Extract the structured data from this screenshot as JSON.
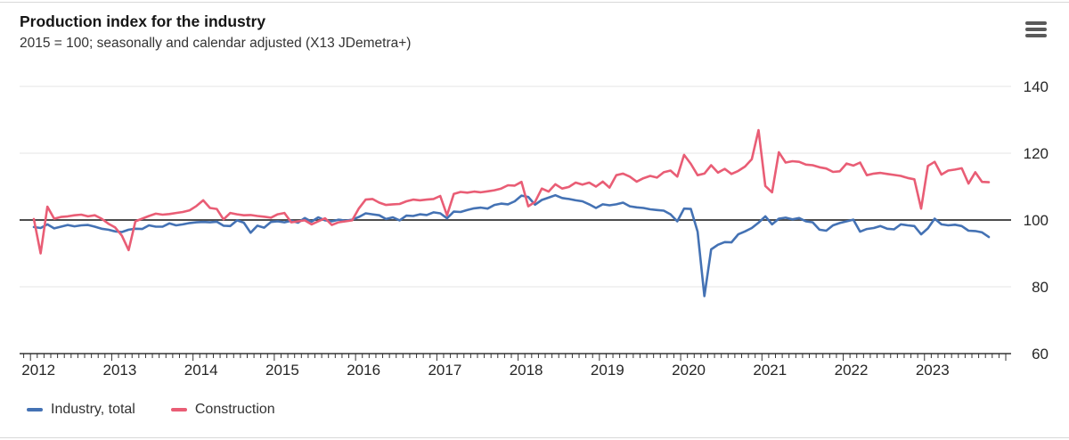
{
  "header": {
    "title": "Production index for the industry",
    "subtitle": "2015 = 100; seasonally and calendar adjusted (X13 JDemetra+)",
    "menu_icon": "hamburger-icon"
  },
  "chart_data": {
    "type": "line",
    "title": "Production index for the industry",
    "subtitle": "2015 = 100; seasonally and calendar adjusted (X13 JDemetra+)",
    "x_unit": "month",
    "x_range": [
      "2012-01",
      "2023-10"
    ],
    "x_tick_labels": [
      "2012",
      "2013",
      "2014",
      "2015",
      "2016",
      "2017",
      "2018",
      "2019",
      "2020",
      "2021",
      "2022",
      "2023"
    ],
    "y_ticks": [
      140,
      120,
      100,
      80,
      60
    ],
    "ylim": [
      60,
      140
    ],
    "baseline_value": 100,
    "grid": "horizontal-only",
    "legend_position": "bottom-left",
    "colors": {
      "grid": "#e6e6e6",
      "baseline": "#4d4d4d",
      "axis": "#333333",
      "text": "#262626"
    },
    "series": [
      {
        "name": "Industry, total",
        "color": "#4472b4",
        "values": [
          97.9,
          97.6,
          98.7,
          97.5,
          98.0,
          98.5,
          98.1,
          98.4,
          98.5,
          98.0,
          97.4,
          97.1,
          96.6,
          96.4,
          97.1,
          97.4,
          97.3,
          98.4,
          98.0,
          98.0,
          99.0,
          98.4,
          98.7,
          99.1,
          99.3,
          99.4,
          99.3,
          99.5,
          98.3,
          98.2,
          99.9,
          99.2,
          96.2,
          98.3,
          97.7,
          99.4,
          99.6,
          99.3,
          99.8,
          99.2,
          100.6,
          99.5,
          100.8,
          99.9,
          99.6,
          100.1,
          99.8,
          100.1,
          100.9,
          102.0,
          101.7,
          101.4,
          100.3,
          100.8,
          99.9,
          101.3,
          101.2,
          101.7,
          101.5,
          102.3,
          102.0,
          100.5,
          102.5,
          102.4,
          103.0,
          103.5,
          103.7,
          103.4,
          104.5,
          104.9,
          104.7,
          105.6,
          107.3,
          106.9,
          104.6,
          106.0,
          106.7,
          107.4,
          106.6,
          106.3,
          105.9,
          105.6,
          104.7,
          103.6,
          104.7,
          104.4,
          104.7,
          105.2,
          104.1,
          103.8,
          103.6,
          103.2,
          103.0,
          102.8,
          101.7,
          99.6,
          103.4,
          103.3,
          96.5,
          77.2,
          91.2,
          92.6,
          93.4,
          93.3,
          95.7,
          96.6,
          97.6,
          99.2,
          101.1,
          98.7,
          100.4,
          100.7,
          100.2,
          100.6,
          99.6,
          99.3,
          97.1,
          96.8,
          98.4,
          99.1,
          99.6,
          100.1,
          96.5,
          97.3,
          97.6,
          98.2,
          97.4,
          97.2,
          98.7,
          98.4,
          98.2,
          95.7,
          97.5,
          100.4,
          98.7,
          98.4,
          98.6,
          98.2,
          96.8,
          96.7,
          96.3,
          94.9
        ]
      },
      {
        "name": "Construction",
        "color": "#e95d75",
        "values": [
          100.3,
          90.0,
          104.0,
          100.4,
          100.9,
          101.1,
          101.4,
          101.6,
          101.1,
          101.4,
          100.4,
          98.9,
          97.8,
          95.3,
          91.0,
          99.6,
          100.4,
          101.2,
          101.9,
          101.6,
          101.8,
          102.1,
          102.4,
          102.9,
          104.2,
          105.9,
          103.6,
          103.3,
          100.2,
          102.1,
          101.7,
          101.4,
          101.5,
          101.2,
          101.0,
          100.7,
          101.7,
          102.1,
          99.3,
          99.6,
          99.9,
          98.7,
          99.6,
          100.5,
          98.5,
          99.3,
          99.6,
          99.9,
          103.5,
          106.1,
          106.3,
          105.2,
          104.5,
          104.7,
          104.8,
          105.6,
          106.1,
          105.9,
          106.1,
          106.3,
          107.2,
          101.4,
          107.8,
          108.4,
          108.2,
          108.5,
          108.3,
          108.6,
          108.9,
          109.4,
          110.4,
          110.3,
          111.4,
          104.1,
          105.4,
          109.4,
          108.5,
          110.7,
          109.4,
          109.9,
          111.2,
          110.6,
          111.2,
          110.0,
          111.5,
          109.7,
          113.4,
          113.9,
          113.0,
          111.5,
          112.5,
          113.2,
          112.7,
          114.3,
          114.8,
          113.0,
          119.5,
          116.8,
          113.4,
          113.9,
          116.4,
          114.2,
          115.3,
          113.8,
          114.7,
          116.0,
          118.2,
          126.9,
          110.2,
          108.3,
          120.3,
          117.2,
          117.6,
          117.4,
          116.6,
          116.4,
          115.8,
          115.4,
          114.4,
          114.6,
          116.9,
          116.3,
          117.2,
          113.4,
          113.9,
          114.1,
          113.8,
          113.5,
          113.2,
          112.6,
          112.2,
          103.4,
          116.2,
          117.4,
          113.6,
          114.8,
          115.1,
          115.5,
          110.9,
          114.3,
          111.4,
          111.3
        ]
      }
    ]
  }
}
